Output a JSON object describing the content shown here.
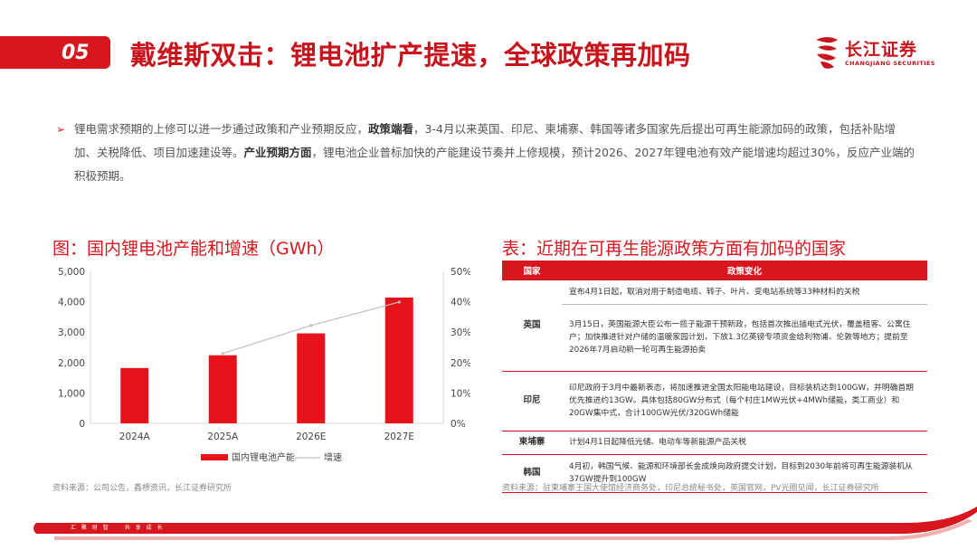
{
  "header": {
    "number": "05",
    "title": "戴维斯双击：锂电池扩产提速，全球政策再加码"
  },
  "logo": {
    "cn": "长江证券",
    "en": "CHANGJIANG SECURITIES"
  },
  "intro": {
    "bullet": "➢",
    "part1": "锂电需求预期的上修可以进一步通过政策和产业预期反应，",
    "bold1": "政策端看",
    "part2": "，3-4月以来英国、印尼、柬埔寨、韩国等诸多国家先后提出可再生能源加码的政策，包括补贴增加、关税降低、项目加速建设等。",
    "bold2": "产业预期方面",
    "part3": "，锂电池企业普标加快的产能建设节奏并上修规模，预计2026、2027年锂电池有效产能增速均超过30%，反应产业端的积极预期。"
  },
  "chart": {
    "title": "图：国内锂电池产能和增速（GWh）",
    "source": "资料来源：公司公告，鑫椤资讯，长江证券研究所",
    "legend_bar": "国内锂电池产能",
    "legend_line": "增速",
    "bar_color": "#e8121a",
    "line_color": "#bfbfbf"
  },
  "chart_data": {
    "type": "bar",
    "categories": [
      "2024A",
      "2025A",
      "2026E",
      "2027E"
    ],
    "series": [
      {
        "name": "国内锂电池产能",
        "type": "bar",
        "axis": "left",
        "values": [
          1820,
          2240,
          2960,
          4140
        ]
      },
      {
        "name": "增速",
        "type": "line",
        "axis": "right",
        "values": [
          null,
          23,
          32.2,
          39.9
        ]
      }
    ],
    "ylim": [
      0,
      5000
    ],
    "y2lim": [
      0,
      50
    ],
    "yticks": [
      "5,000",
      "4,000",
      "3,000",
      "2,000",
      "1,000",
      "0"
    ],
    "y2ticks": [
      "50%",
      "40%",
      "30%",
      "20%",
      "10%",
      "0%"
    ],
    "legend_position": "bottom",
    "grid": false
  },
  "table": {
    "title": "表：近期在可再生能源政策方面有加码的国家",
    "headers": [
      "国家",
      "政策变化"
    ],
    "uk": {
      "country": "英国",
      "c1": "宣布4月1日起，取消对用于制造电缆、转子、叶片、变电站系统等33种材料的关税",
      "c2": "3月15日，英国能源大臣公布一揽子能源干预新政，包括首次推出插电式光伏，覆盖租客、公寓住户；加快推进针对户储的温暖家园计划，下放1.3亿英镑专项资金给利物浦、伦敦等地方；提前至2026年7月启动新一轮可再生能源拍卖"
    },
    "id": {
      "country": "印尼",
      "c1": "印尼政府于3月中最新表态，将加速推进全国太阳能电站建设，目标装机达到100GW，并明确首期优先推进约13GW。具体包括80GW分布式（每个村庄1MW光伏+4MWh储能，类工商业）和20GW集中式，合计100GW光伏/320GWh储能"
    },
    "kh": {
      "country": "柬埔寨",
      "c1": "计划4月1日起降低光储、电动车等新能源产品关税"
    },
    "kr": {
      "country": "韩国",
      "c1": "4月初，韩国气候、能源和环境部长金成焕向政府提交计划，目标到2030年前将可再生能源装机从37GW提升到100GW"
    },
    "source": "资料来源：驻柬埔寨王国大使馆经济商务处，印尼总统秘书处，英国官网，PV光圈见闻，长江证券研究所"
  },
  "footer": {
    "text": "汇 聚 财 智　　共 享 成 长"
  }
}
